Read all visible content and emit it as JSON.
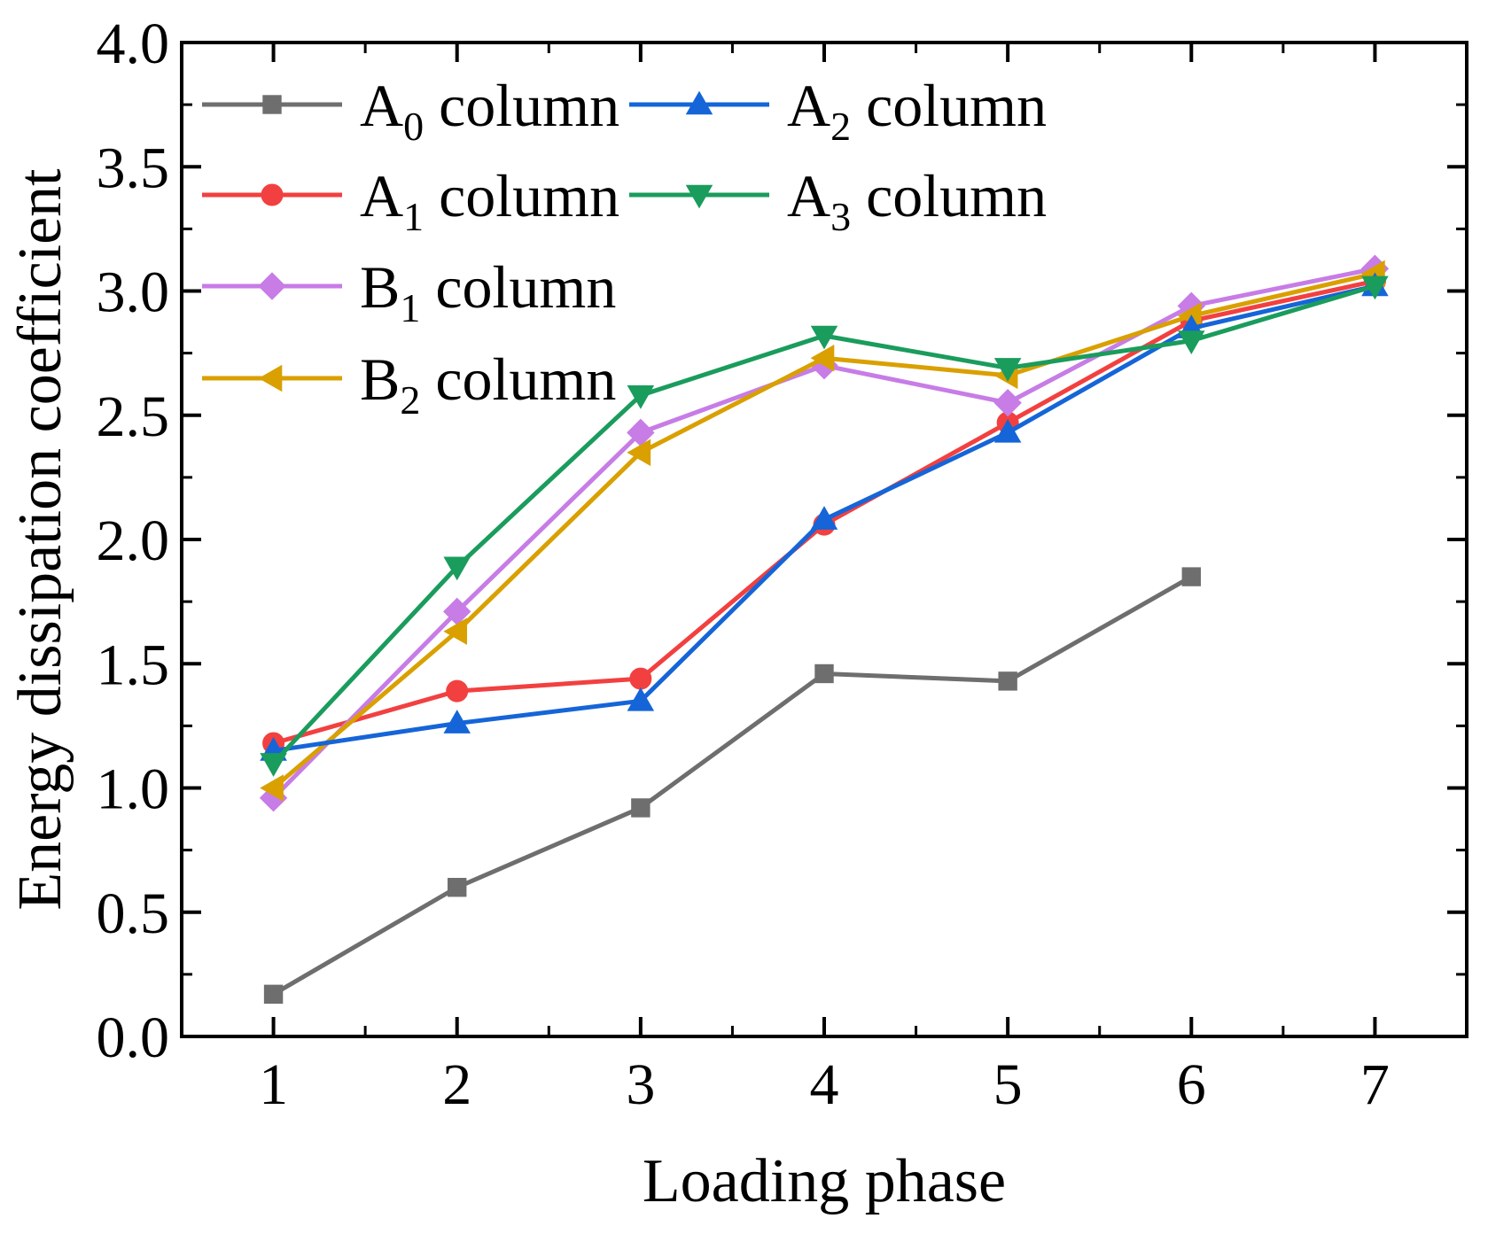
{
  "chart_data": {
    "type": "line",
    "title": "",
    "xlabel": "Loading phase",
    "ylabel": "Energy dissipation coefficient",
    "x": [
      1,
      2,
      3,
      4,
      5,
      6,
      7
    ],
    "x_ticks": [
      "1",
      "2",
      "3",
      "4",
      "5",
      "6",
      "7"
    ],
    "xlim": [
      0.5,
      7.5
    ],
    "ylim": [
      0.0,
      4.0
    ],
    "y_ticks": [
      "0.0",
      "0.5",
      "1.0",
      "1.5",
      "2.0",
      "2.5",
      "3.0",
      "3.5",
      "4.0"
    ],
    "grid": false,
    "legend_position": "top-left",
    "series": [
      {
        "name": "A",
        "sub": "0",
        "suffix": " column",
        "color": "#6e6e6e",
        "marker": "square",
        "values": [
          0.17,
          0.6,
          0.92,
          1.46,
          1.43,
          1.85,
          null
        ]
      },
      {
        "name": "A",
        "sub": "1",
        "suffix": " column",
        "color": "#f24040",
        "marker": "circle",
        "values": [
          1.18,
          1.39,
          1.44,
          2.06,
          2.47,
          2.88,
          3.04
        ]
      },
      {
        "name": "B",
        "sub": "1",
        "suffix": " column",
        "color": "#c77ce6",
        "marker": "diamond",
        "values": [
          0.96,
          1.71,
          2.43,
          2.7,
          2.55,
          2.94,
          3.09
        ]
      },
      {
        "name": "B",
        "sub": "2",
        "suffix": " column",
        "color": "#d9a000",
        "marker": "triangle-left",
        "values": [
          1.0,
          1.63,
          2.35,
          2.73,
          2.66,
          2.9,
          3.07
        ]
      },
      {
        "name": "A",
        "sub": "2",
        "suffix": " column",
        "color": "#1565d8",
        "marker": "triangle-up",
        "values": [
          1.15,
          1.26,
          1.35,
          2.08,
          2.43,
          2.85,
          3.02
        ]
      },
      {
        "name": "A",
        "sub": "3",
        "suffix": " column",
        "color": "#1a9c5c",
        "marker": "triangle-down",
        "values": [
          1.1,
          1.89,
          2.58,
          2.82,
          2.69,
          2.8,
          3.02
        ]
      }
    ]
  }
}
